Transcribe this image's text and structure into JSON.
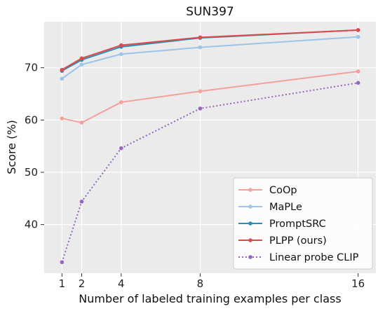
{
  "chart_data": {
    "type": "line",
    "title": "SUN397",
    "xlabel": "Number of labeled training examples per class",
    "ylabel": "Score (%)",
    "x": [
      1,
      2,
      4,
      8,
      16
    ],
    "x_ticks": [
      1,
      2,
      4,
      8,
      16
    ],
    "y_ticks": [
      40,
      50,
      60,
      70
    ],
    "xlim": [
      0.1,
      16.9
    ],
    "ylim": [
      30.7,
      78.8
    ],
    "grid": true,
    "legend_position": "lower-right",
    "series": [
      {
        "name": "CoOp",
        "values": [
          60.3,
          59.5,
          63.4,
          65.5,
          69.3
        ],
        "color": "#f4a09c",
        "style": "solid"
      },
      {
        "name": "MaPLe",
        "values": [
          67.9,
          70.6,
          72.6,
          73.9,
          75.9
        ],
        "color": "#9dc3e8",
        "style": "solid"
      },
      {
        "name": "PromptSRC",
        "values": [
          69.4,
          71.5,
          74.0,
          75.7,
          77.2
        ],
        "color": "#2a8db5",
        "style": "solid"
      },
      {
        "name": "PLPP (ours)",
        "values": [
          69.6,
          71.8,
          74.3,
          75.8,
          77.2
        ],
        "color": "#e0494a",
        "style": "solid"
      },
      {
        "name": "Linear probe CLIP",
        "values": [
          32.8,
          44.4,
          54.6,
          62.2,
          67.1
        ],
        "color": "#9467bd",
        "style": "dotted"
      }
    ]
  }
}
